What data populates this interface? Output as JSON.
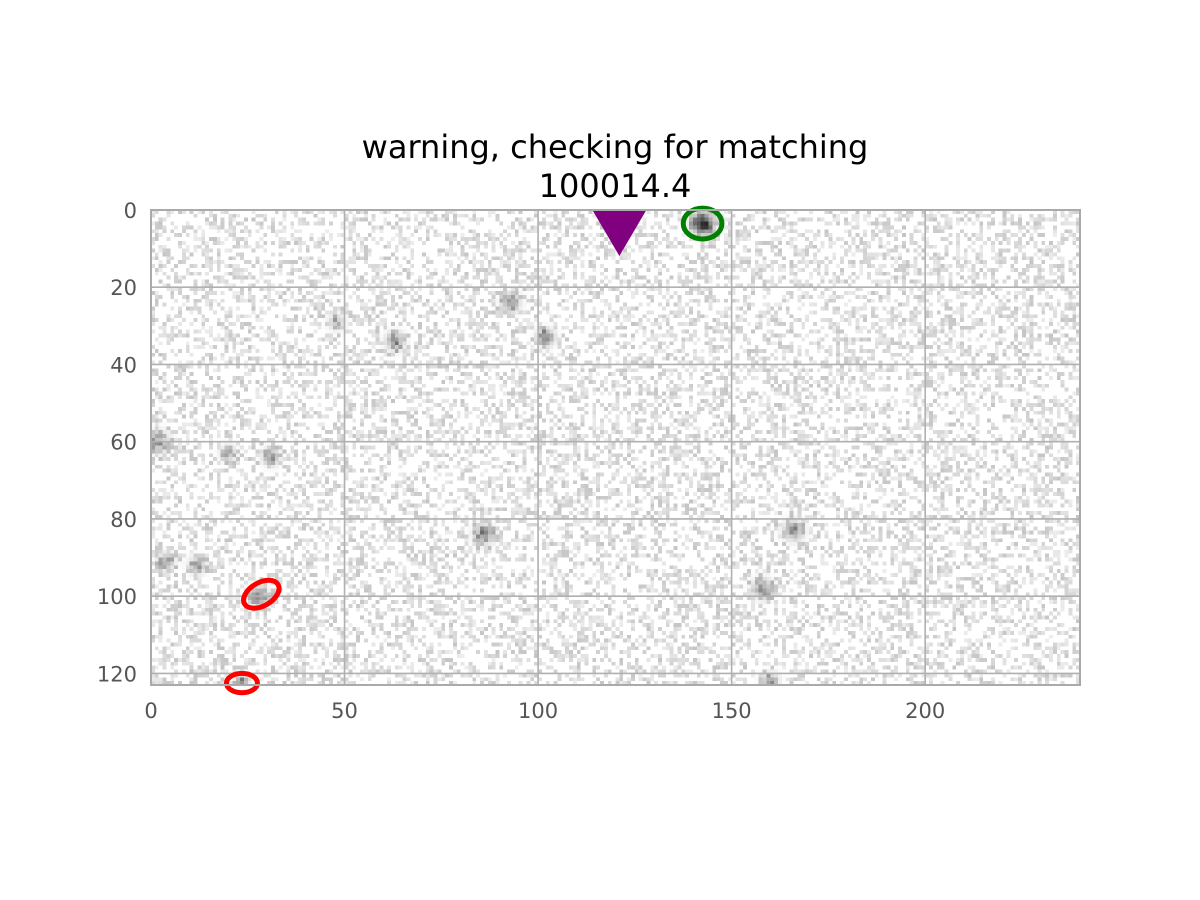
{
  "chart_data": {
    "type": "heatmap",
    "title_lines": [
      "warning, checking for matching",
      "100014.4"
    ],
    "xlabel": "",
    "ylabel": "",
    "x_range": [
      0,
      240
    ],
    "y_range": [
      0,
      123
    ],
    "y_inverted": true,
    "x_ticks": [
      0,
      50,
      100,
      150,
      200
    ],
    "y_ticks": [
      0,
      20,
      40,
      60,
      80,
      100,
      120
    ],
    "grid": true,
    "colormap": "gray_r",
    "background_noise_level": 0.12,
    "sources": [
      {
        "x": 142.5,
        "y": 3.5,
        "intensity": 1.0,
        "sigma": 1.8
      },
      {
        "x": 93,
        "y": 24,
        "intensity": 0.45,
        "sigma": 1.6
      },
      {
        "x": 63,
        "y": 34,
        "intensity": 0.45,
        "sigma": 1.6
      },
      {
        "x": 102,
        "y": 33,
        "intensity": 0.5,
        "sigma": 1.5
      },
      {
        "x": 48,
        "y": 29,
        "intensity": 0.25,
        "sigma": 1.5
      },
      {
        "x": 2,
        "y": 60,
        "intensity": 0.3,
        "sigma": 2.0
      },
      {
        "x": 20,
        "y": 63,
        "intensity": 0.25,
        "sigma": 1.5
      },
      {
        "x": 31,
        "y": 64,
        "intensity": 0.4,
        "sigma": 1.5
      },
      {
        "x": 86,
        "y": 84,
        "intensity": 0.4,
        "sigma": 1.8
      },
      {
        "x": 166,
        "y": 83,
        "intensity": 0.4,
        "sigma": 1.8
      },
      {
        "x": 4,
        "y": 91,
        "intensity": 0.35,
        "sigma": 1.5
      },
      {
        "x": 12,
        "y": 92,
        "intensity": 0.35,
        "sigma": 1.5
      },
      {
        "x": 28,
        "y": 100,
        "intensity": 0.5,
        "sigma": 1.6
      },
      {
        "x": 158,
        "y": 98,
        "intensity": 0.4,
        "sigma": 1.8
      },
      {
        "x": 160,
        "y": 122,
        "intensity": 0.35,
        "sigma": 1.5
      },
      {
        "x": 23.5,
        "y": 122,
        "intensity": 0.6,
        "sigma": 1.0
      }
    ],
    "markers": [
      {
        "kind": "triangle-down",
        "x": 121,
        "y": 0,
        "color": "#800080"
      },
      {
        "kind": "circle",
        "x": 142.5,
        "y": 3.5,
        "rx": 5,
        "ry": 4,
        "rotation": 0,
        "color": "#008000"
      },
      {
        "kind": "ellipse",
        "x": 28.5,
        "y": 99.5,
        "rx": 5,
        "ry": 3,
        "rotation": -30,
        "color": "#ff0000"
      },
      {
        "kind": "ellipse",
        "x": 23.5,
        "y": 122.5,
        "rx": 4,
        "ry": 2.5,
        "rotation": 0,
        "color": "#ff0000"
      }
    ]
  }
}
